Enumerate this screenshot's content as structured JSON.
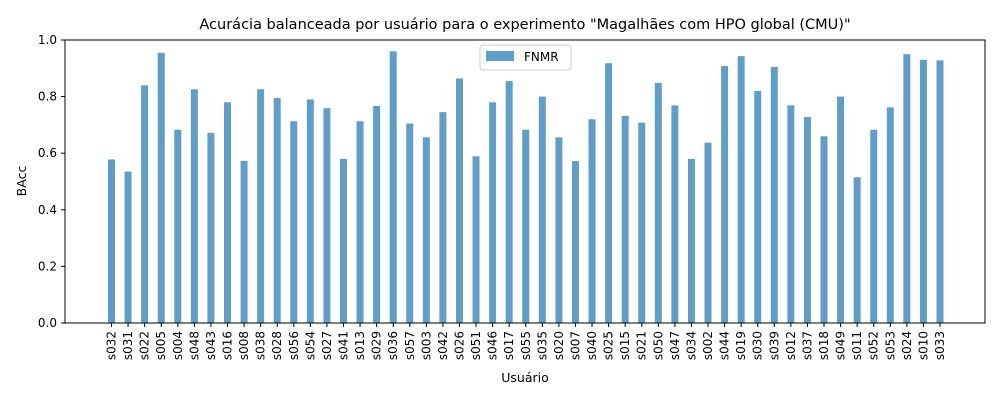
{
  "chart_data": {
    "type": "bar",
    "title": "Acurácia balanceada por usuário para o experimento \"Magalhães com HPO global (CMU)\"",
    "xlabel": "Usuário",
    "ylabel": "BAcc",
    "ylim": [
      0.0,
      1.0
    ],
    "yticks": [
      "0.0",
      "0.2",
      "0.4",
      "0.6",
      "0.8",
      "1.0"
    ],
    "grid": false,
    "legend_position": "top-center",
    "bar_color": "#5f9ec9",
    "categories": [
      "s032",
      "s031",
      "s022",
      "s005",
      "s004",
      "s048",
      "s043",
      "s016",
      "s008",
      "s038",
      "s028",
      "s056",
      "s054",
      "s027",
      "s041",
      "s013",
      "s029",
      "s036",
      "s057",
      "s003",
      "s042",
      "s026",
      "s051",
      "s046",
      "s017",
      "s055",
      "s035",
      "s020",
      "s007",
      "s040",
      "s025",
      "s015",
      "s021",
      "s050",
      "s047",
      "s034",
      "s002",
      "s044",
      "s019",
      "s030",
      "s039",
      "s012",
      "s037",
      "s018",
      "s049",
      "s011",
      "s052",
      "s053",
      "s024",
      "s010",
      "s033"
    ],
    "series": [
      {
        "name": "FNMR",
        "values": [
          0.578,
          0.535,
          0.84,
          0.955,
          0.683,
          0.826,
          0.672,
          0.78,
          0.573,
          0.826,
          0.795,
          0.713,
          0.79,
          0.759,
          0.58,
          0.713,
          0.767,
          0.96,
          0.705,
          0.656,
          0.745,
          0.864,
          0.589,
          0.78,
          0.855,
          0.683,
          0.8,
          0.656,
          0.572,
          0.72,
          0.918,
          0.732,
          0.708,
          0.848,
          0.769,
          0.58,
          0.637,
          0.908,
          0.943,
          0.82,
          0.905,
          0.769,
          0.728,
          0.66,
          0.8,
          0.515,
          0.683,
          0.762,
          0.95,
          0.93,
          0.928
        ]
      }
    ]
  }
}
